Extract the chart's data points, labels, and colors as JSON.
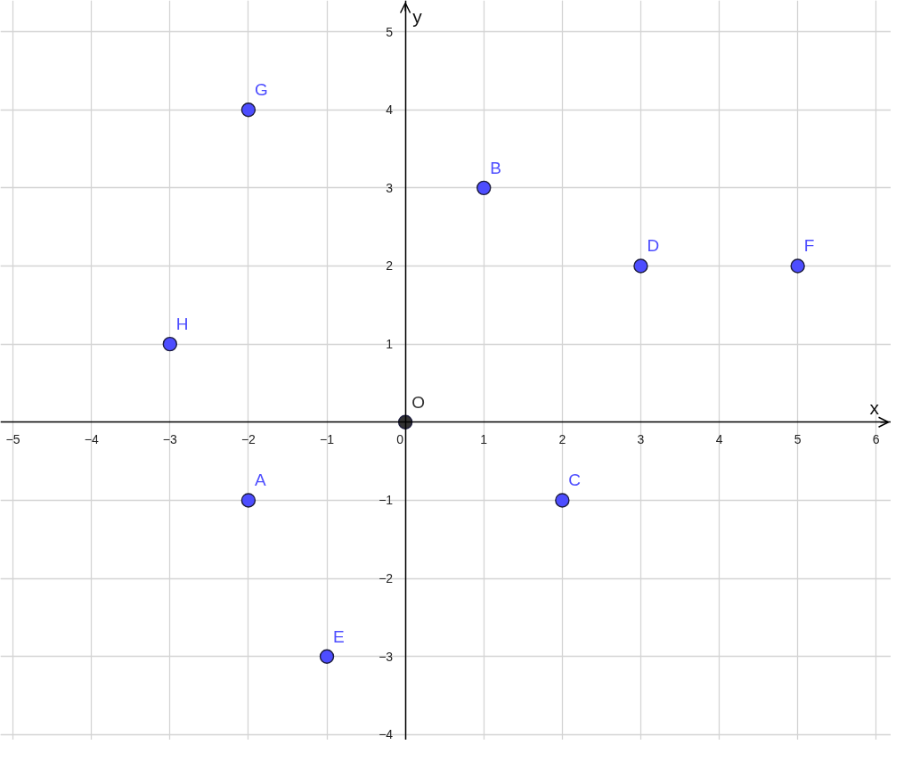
{
  "chart_data": {
    "type": "scatter",
    "xlabel": "x",
    "ylabel": "y",
    "xlim": [
      -5.16,
      6.19
    ],
    "ylim": [
      -4.07,
      5.4
    ],
    "xticks": [
      {
        "value": -5,
        "label": "−5"
      },
      {
        "value": -4,
        "label": "−4"
      },
      {
        "value": -3,
        "label": "−3"
      },
      {
        "value": -2,
        "label": "−2"
      },
      {
        "value": -1,
        "label": "−1"
      },
      0,
      1,
      2,
      3,
      4,
      5,
      6
    ],
    "yticks": [
      {
        "value": -4,
        "label": "−4"
      },
      {
        "value": -3,
        "label": "−3"
      },
      {
        "value": -2,
        "label": "−2"
      },
      {
        "value": -1,
        "label": "−1"
      },
      1,
      2,
      3,
      4,
      5
    ],
    "grid": true,
    "marker": "circle",
    "series": [
      {
        "color": "#4d4dff",
        "x": [
          -2,
          1,
          2,
          3,
          -1,
          5,
          -2,
          -3
        ],
        "values": [
          -1,
          3,
          -1,
          2,
          -3,
          2,
          4,
          1
        ]
      },
      {
        "color": "#333333",
        "x": [
          0
        ],
        "values": [
          0
        ]
      }
    ],
    "annotations": [
      {
        "text": "A",
        "x": -2,
        "y": -1
      },
      {
        "text": "B",
        "x": 1,
        "y": 3
      },
      {
        "text": "C",
        "x": 2,
        "y": -1
      },
      {
        "text": "D",
        "x": 3,
        "y": 2
      },
      {
        "text": "E",
        "x": -1,
        "y": -3
      },
      {
        "text": "F",
        "x": 5,
        "y": 2
      },
      {
        "text": "G",
        "x": -2,
        "y": 4
      },
      {
        "text": "H",
        "x": -3,
        "y": 1
      },
      {
        "text": "O",
        "x": 0,
        "y": 0
      }
    ]
  }
}
